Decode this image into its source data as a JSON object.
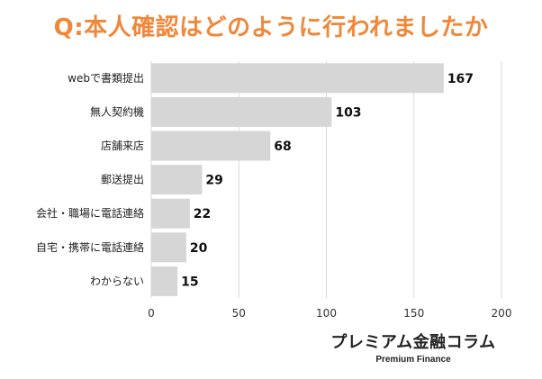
{
  "title": "Q:本人確認はどのように行われましたか",
  "brand": {
    "name": "プレミアム金融コラム",
    "subname": "Premium Finance"
  },
  "colors": {
    "title": "#f0883a",
    "bar": "#d6d6d6",
    "grid": "#d9d9d9",
    "axis": "#333333"
  },
  "chart_data": {
    "type": "bar",
    "orientation": "horizontal",
    "categories": [
      "webで書類提出",
      "無人契約機",
      "店舗来店",
      "郵送提出",
      "会社・職場に電話連絡",
      "自宅・携帯に電話連絡",
      "わからない"
    ],
    "values": [
      167,
      103,
      68,
      29,
      22,
      20,
      15
    ],
    "xticks": [
      0,
      50,
      100,
      150,
      200
    ],
    "xlim": [
      0,
      200
    ],
    "grid": true,
    "xlabel": "",
    "ylabel": ""
  }
}
